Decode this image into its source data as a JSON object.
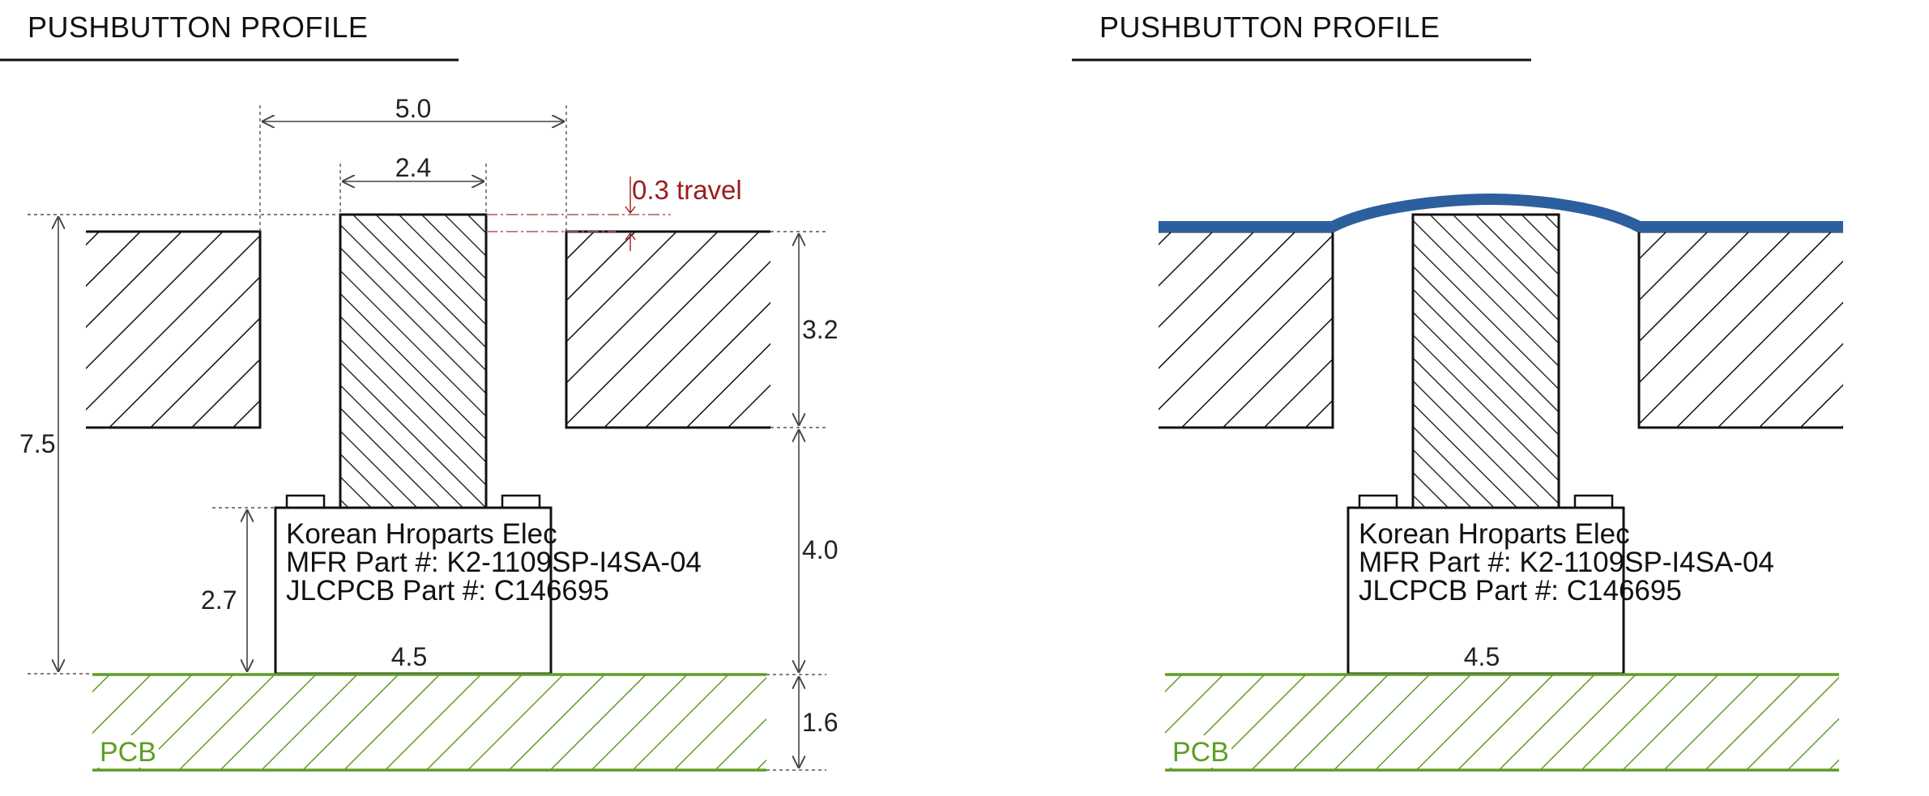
{
  "colors": {
    "pcb": "#5e9e24",
    "travel": "#9b1c1c",
    "membrane": "#2c5f9e",
    "line": "#111111",
    "dim": "#444444"
  },
  "left": {
    "title": "PUSHBUTTON PROFILE",
    "dims": {
      "width_outer": "5.0",
      "width_button": "2.4",
      "travel": "0.3 travel",
      "panel_thickness": "3.2",
      "total_height": "7.5",
      "gap": "4.0",
      "body_height": "2.7",
      "pcb_thickness": "1.6",
      "body_width": "4.5"
    },
    "part": {
      "line1": "Korean Hroparts Elec",
      "line2": "MFR Part #: K2-1109SP-I4SA-04",
      "line3": "JLCPCB Part #: C146695"
    },
    "pcb_label": "PCB"
  },
  "right": {
    "title": "PUSHBUTTON PROFILE",
    "body_width": "4.5",
    "part": {
      "line1": "Korean Hroparts Elec",
      "line2": "MFR Part #: K2-1109SP-I4SA-04",
      "line3": "JLCPCB Part #: C146695"
    },
    "pcb_label": "PCB"
  }
}
